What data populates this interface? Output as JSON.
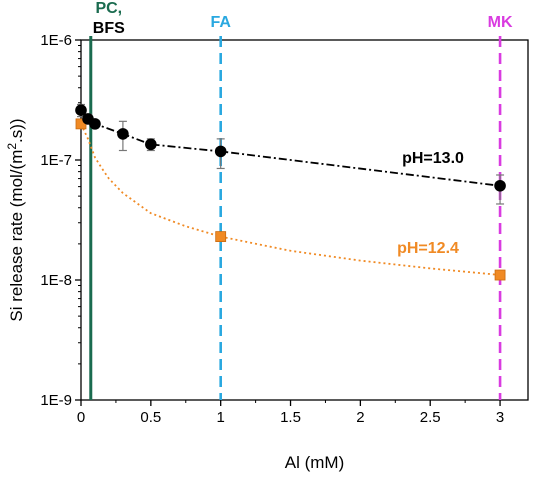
{
  "chart_data": {
    "type": "scatter",
    "xlabel": "Al (mM)",
    "ylabel": "Si release rate (mol/(m².s))",
    "ylabel_parts": {
      "pre": "Si release rate (mol/(m",
      "sup": "2",
      "post": ".s))"
    },
    "xlim": [
      0,
      3.2
    ],
    "ylim": [
      1e-09,
      1e-06
    ],
    "yscale": "log",
    "x_ticks": [
      0,
      0.5,
      1,
      1.5,
      2,
      2.5,
      3
    ],
    "x_tick_labels": [
      "0",
      "0.5",
      "1",
      "1.5",
      "2",
      "2.5",
      "3"
    ],
    "y_ticks": [
      1e-09,
      1e-08,
      1e-07,
      1e-06
    ],
    "y_tick_labels": [
      "1E-9",
      "1E-8",
      "1E-7",
      "1E-6"
    ],
    "grid": false,
    "series": [
      {
        "name": "pH=13.0",
        "color": "#000000",
        "marker": "circle",
        "line_style": "dash-dot",
        "x": [
          0,
          0.05,
          0.1,
          0.3,
          0.5,
          1.0,
          3.0
        ],
        "y": [
          2.6e-07,
          2.2e-07,
          2e-07,
          1.65e-07,
          1.35e-07,
          1.18e-07,
          6.1e-08
        ],
        "err_low": [
          2.3e-07,
          2e-07,
          1.85e-07,
          1.2e-07,
          1.2e-07,
          8.5e-08,
          4.3e-08
        ],
        "err_high": [
          2.9e-07,
          2.4e-07,
          2.15e-07,
          2.1e-07,
          1.5e-07,
          1.5e-07,
          7.5e-08
        ]
      },
      {
        "name": "pH=12.4",
        "color": "#f08a24",
        "marker": "square",
        "line_style": "dotted",
        "x": [
          0,
          1.0,
          3.0
        ],
        "y": [
          2e-07,
          2.3e-08,
          1.1e-08
        ],
        "fit_x": [
          0,
          0.05,
          0.1,
          0.15,
          0.2,
          0.3,
          0.5,
          0.75,
          1.0,
          1.5,
          2.0,
          2.5,
          3.0
        ],
        "fit_y": [
          2e-07,
          1.5e-07,
          1.05e-07,
          8.5e-08,
          7e-08,
          5.3e-08,
          3.6e-08,
          2.8e-08,
          2.3e-08,
          1.75e-08,
          1.45e-08,
          1.25e-08,
          1.1e-08
        ]
      }
    ],
    "reference_lines": [
      {
        "x": 0.07,
        "label_lines": [
          "PC,",
          "BFS"
        ],
        "label_colors": [
          "#1a6b4f",
          "#000000"
        ],
        "color": "#1a6b4f",
        "style": "solid"
      },
      {
        "x": 1.0,
        "label_lines": [
          "FA"
        ],
        "label_colors": [
          "#29a8e0"
        ],
        "color": "#29a8e0",
        "style": "dashed"
      },
      {
        "x": 3.0,
        "label_lines": [
          "MK"
        ],
        "label_colors": [
          "#d93be0"
        ],
        "color": "#d93be0",
        "style": "dashed"
      }
    ]
  }
}
